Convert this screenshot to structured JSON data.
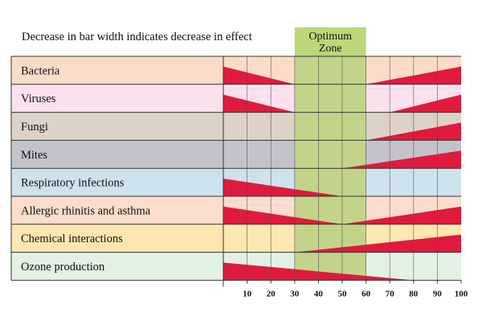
{
  "caption": "Decrease in bar width indicates decrease in effect",
  "zone": {
    "label_line1": "Optimum",
    "label_line2": "Zone",
    "range": [
      30,
      60
    ],
    "fill_color": "#c2d48a",
    "header_color": "#bcd67a"
  },
  "colors": {
    "wedge": "#e01a3c",
    "grid_line": "#5a4a4a",
    "outline": "#333333"
  },
  "chart_data": {
    "type": "diagram",
    "caption": "Decrease in bar width indicates decrease in effect",
    "x_domain": [
      0,
      100
    ],
    "x_ticks": [
      "10",
      "20",
      "30",
      "40",
      "50",
      "60",
      "70",
      "80",
      "90",
      "100"
    ],
    "optimum_zone": [
      30,
      60
    ],
    "rows": [
      {
        "label": "Bacteria",
        "band_color": "#fbdcc9",
        "wedges": [
          {
            "from": 0,
            "to": 30,
            "side": "left"
          },
          {
            "from": 60,
            "to": 100,
            "side": "right"
          }
        ]
      },
      {
        "label": "Viruses",
        "band_color": "#fbe0ee",
        "wedges": [
          {
            "from": 0,
            "to": 30,
            "side": "left"
          },
          {
            "from": 70,
            "to": 100,
            "side": "right"
          }
        ]
      },
      {
        "label": "Fungi",
        "band_color": "#ddd2c8",
        "wedges": [
          {
            "from": 60,
            "to": 100,
            "side": "right"
          }
        ]
      },
      {
        "label": "Mites",
        "band_color": "#c3c3cc",
        "wedges": [
          {
            "from": 50,
            "to": 100,
            "side": "right"
          }
        ]
      },
      {
        "label": "Respiratory infections",
        "band_color": "#cde2ec",
        "wedges": [
          {
            "from": 0,
            "to": 50,
            "side": "left"
          }
        ]
      },
      {
        "label": "Allergic rhinitis and asthma",
        "band_color": "#fbdccd",
        "wedges": [
          {
            "from": 0,
            "to": 50,
            "side": "left"
          },
          {
            "from": 50,
            "to": 100,
            "side": "right"
          }
        ]
      },
      {
        "label": "Chemical interactions",
        "band_color": "#fde6b0",
        "wedges": [
          {
            "from": 30,
            "to": 100,
            "side": "right"
          }
        ]
      },
      {
        "label": "Ozone production",
        "band_color": "#e2f1e4",
        "wedges": [
          {
            "from": 0,
            "to": 80,
            "side": "left"
          }
        ]
      }
    ]
  }
}
